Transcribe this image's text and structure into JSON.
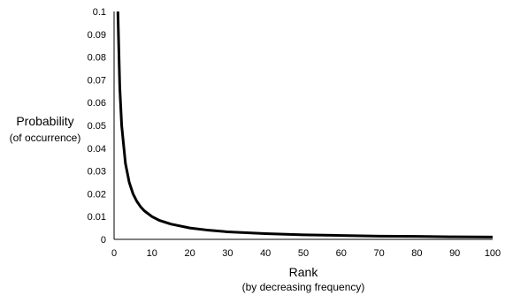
{
  "chart_data": {
    "type": "line",
    "xlabel": "Rank",
    "xlabel_sub": "(by decreasing frequency)",
    "ylabel": "Probability",
    "ylabel_sub": "(of occurrence)",
    "xlim": [
      0,
      100
    ],
    "ylim": [
      0,
      0.1
    ],
    "xticks": [
      "0",
      "10",
      "20",
      "30",
      "40",
      "50",
      "60",
      "70",
      "80",
      "90",
      "100"
    ],
    "yticks": [
      "0",
      "0.01",
      "0.02",
      "0.03",
      "0.04",
      "0.05",
      "0.06",
      "0.07",
      "0.08",
      "0.09",
      "0.1"
    ],
    "grid": false,
    "legend": "none",
    "line_color": "#000000",
    "series": [
      {
        "x": [
          1,
          1.5,
          2,
          3,
          4,
          5,
          6,
          7,
          8,
          10,
          12,
          15,
          20,
          25,
          30,
          40,
          50,
          60,
          70,
          80,
          90,
          100
        ],
        "values": [
          0.1,
          0.0667,
          0.05,
          0.0333,
          0.025,
          0.02,
          0.0167,
          0.0143,
          0.0125,
          0.01,
          0.0083,
          0.0067,
          0.005,
          0.004,
          0.0033,
          0.0025,
          0.002,
          0.0017,
          0.0014,
          0.0013,
          0.0011,
          0.001
        ]
      }
    ]
  }
}
